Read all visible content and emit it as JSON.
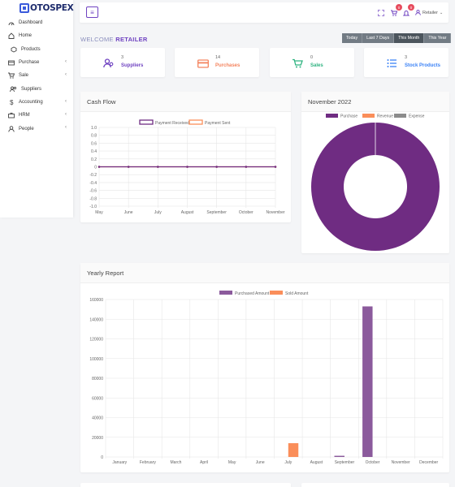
{
  "brand": {
    "name": "OTOSPEX"
  },
  "sidebar": {
    "items": [
      {
        "label": "Dashboard",
        "icon": "speedometer-icon",
        "has_submenu": false
      },
      {
        "label": "Home",
        "icon": "home-icon",
        "has_submenu": false
      },
      {
        "label": "Products",
        "icon": "box-icon",
        "has_submenu": false
      },
      {
        "label": "Purchase",
        "icon": "card-icon",
        "has_submenu": true
      },
      {
        "label": "Sale",
        "icon": "cart-icon",
        "has_submenu": true
      },
      {
        "label": "Suppliers",
        "icon": "users-icon",
        "has_submenu": false
      },
      {
        "label": "Accounting",
        "icon": "dollar-icon",
        "has_submenu": true
      },
      {
        "label": "HRM",
        "icon": "briefcase-icon",
        "has_submenu": true
      },
      {
        "label": "People",
        "icon": "person-icon",
        "has_submenu": true
      }
    ],
    "submenu_chevron": "‹"
  },
  "topbar": {
    "menu_icon": "≡",
    "fullscreen_icon": "fullscreen-icon",
    "cart_badge": "0",
    "bell_badge": "0",
    "user_label": "Retailer",
    "user_caret": "⌄"
  },
  "welcome": {
    "prefix": "WELCOME",
    "role": "RETAILER"
  },
  "period_filters": [
    {
      "label": "Today",
      "active": false
    },
    {
      "label": "Last 7 Days",
      "active": false
    },
    {
      "label": "This Month",
      "active": true
    },
    {
      "label": "This Year",
      "active": false
    }
  ],
  "stats": [
    {
      "value": "3",
      "label": "Suppliers",
      "color": "#6f42c1",
      "icon": "users-icon"
    },
    {
      "value": "14",
      "label": "Purchases",
      "color": "#f4845f",
      "icon": "credit-card-icon"
    },
    {
      "value": "0",
      "label": "Sales",
      "color": "#2fb380",
      "icon": "cart-icon"
    },
    {
      "value": "3",
      "label": "Stock Products",
      "color": "#3b82f6",
      "icon": "list-icon"
    }
  ],
  "colors": {
    "purple": "#6f2c82",
    "orange": "#fa8e5a",
    "gray": "#8c8c8c"
  },
  "cash_flow": {
    "title": "Cash Flow",
    "chart_data": {
      "type": "line",
      "categories": [
        "May",
        "June",
        "July",
        "August",
        "September",
        "October",
        "November"
      ],
      "series": [
        {
          "name": "Payment Received",
          "values": [
            0,
            0,
            0,
            0,
            0,
            0,
            0
          ],
          "color": "#6f2c82"
        },
        {
          "name": "Payment Sent",
          "values": [
            0,
            0,
            0,
            0,
            0,
            0,
            0
          ],
          "color": "#fa8e5a"
        }
      ],
      "ylim": [
        -1.0,
        1.0
      ],
      "yticks": [
        "1.0",
        "0.8",
        "0.6",
        "0.4",
        "0.2",
        "0",
        "-0.2",
        "-0.4",
        "-0.6",
        "-0.8",
        "-1.0"
      ],
      "legend": "top",
      "grid": true
    }
  },
  "november": {
    "title": "November 2022",
    "chart_data": {
      "type": "pie",
      "categories": [
        "Purchase",
        "Revenue",
        "Expense"
      ],
      "values": [
        100,
        0,
        0
      ],
      "colors": [
        "#6f2c82",
        "#fa8e5a",
        "#8c8c8c"
      ],
      "legend": "top"
    }
  },
  "yearly": {
    "title": "Yearly Report",
    "chart_data": {
      "type": "bar",
      "categories": [
        "January",
        "February",
        "March",
        "April",
        "May",
        "June",
        "July",
        "August",
        "September",
        "October",
        "November",
        "December"
      ],
      "series": [
        {
          "name": "Purchased Amount",
          "values": [
            0,
            0,
            0,
            0,
            0,
            0,
            0,
            0,
            1200,
            153000,
            0,
            0
          ],
          "color": "#8b5a9c"
        },
        {
          "name": "Sold Amount",
          "values": [
            0,
            0,
            0,
            0,
            0,
            0,
            14000,
            0,
            0,
            0,
            0,
            0
          ],
          "color": "#fa8e5a"
        }
      ],
      "ylim": [
        0,
        160000
      ],
      "yticks": [
        "160000",
        "140000",
        "120000",
        "100000",
        "80000",
        "60000",
        "40000",
        "20000",
        "0"
      ],
      "legend": "top",
      "grid": true
    }
  }
}
